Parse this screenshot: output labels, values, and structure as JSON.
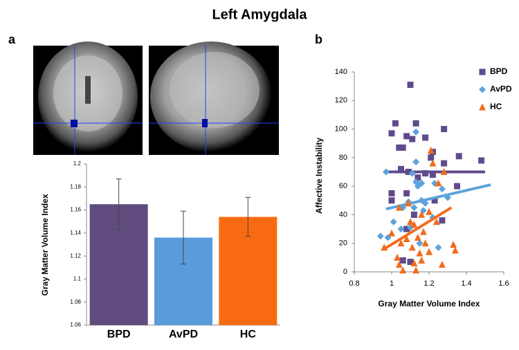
{
  "title": "Left Amygdala",
  "chart_data": [
    {
      "type": "bar",
      "panel_label": "a",
      "ylabel": "Gray Matter Volume Index",
      "categories": [
        "BPD",
        "AvPD",
        "HC"
      ],
      "values": [
        1.165,
        1.136,
        1.154
      ],
      "errors": [
        0.022,
        0.023,
        0.017
      ],
      "colors": [
        "#5f4b7e",
        "#5a9bdc",
        "#f96b12"
      ],
      "ylim": [
        1.06,
        1.2
      ],
      "yticks": [
        1.06,
        1.08,
        1.1,
        1.12,
        1.14,
        1.16,
        1.18,
        1.2
      ],
      "grid": false
    },
    {
      "type": "scatter",
      "panel_label": "b",
      "xlabel": "Gray Matter Volume Index",
      "ylabel": "Affective Instability",
      "xlim": [
        0.8,
        1.6
      ],
      "ylim": [
        0,
        140
      ],
      "xticks": [
        0.8,
        1,
        1.2,
        1.4,
        1.6
      ],
      "yticks": [
        0,
        20,
        40,
        60,
        80,
        100,
        120,
        140
      ],
      "legend": "upper right",
      "grid": false,
      "series": [
        {
          "name": "BPD",
          "color": "#5f4b8b",
          "marker": "square",
          "x": [
            1.1,
            1.02,
            1.13,
            1.0,
            1.08,
            1.11,
            1.18,
            1.28,
            1.04,
            1.06,
            1.22,
            1.36,
            1.48,
            1.28,
            1.14,
            1.21,
            1.05,
            1.09,
            1.0,
            1.0,
            1.08,
            1.18,
            1.22,
            1.12,
            1.23,
            1.08,
            1.06,
            1.1,
            1.35,
            1.27
          ],
          "y": [
            131,
            104,
            104,
            97,
            95,
            93,
            94,
            100,
            87,
            87,
            84,
            81,
            78,
            76,
            66,
            80,
            72,
            70,
            55,
            50,
            55,
            69,
            68,
            40,
            50,
            30,
            8,
            7,
            60,
            36
          ],
          "trend": {
            "x": [
              0.97,
              1.5
            ],
            "y": [
              70,
              70
            ]
          }
        },
        {
          "name": "AvPD",
          "color": "#5ba3dc",
          "marker": "diamond",
          "x": [
            1.13,
            0.97,
            1.11,
            1.13,
            1.13,
            1.14,
            1.16,
            1.09,
            1.12,
            1.17,
            1.22,
            1.27,
            1.3,
            1.23,
            1.01,
            0.94,
            0.98,
            1.05,
            1.1,
            1.15,
            1.25,
            1.18,
            1.16,
            1.06
          ],
          "y": [
            98,
            70,
            69,
            77,
            63,
            60,
            50,
            49,
            45,
            43,
            38,
            58,
            52,
            62,
            35,
            25,
            24,
            30,
            31,
            20,
            17,
            48,
            62,
            45
          ],
          "trend": {
            "x": [
              0.97,
              1.53
            ],
            "y": [
              44,
              61
            ]
          }
        },
        {
          "name": "HC",
          "color": "#f26b1d",
          "marker": "triangle",
          "x": [
            1.21,
            1.22,
            1.25,
            1.28,
            1.04,
            1.09,
            1.1,
            1.12,
            1.16,
            1.2,
            1.17,
            1.14,
            1.18,
            1.05,
            0.96,
            1.03,
            1.04,
            1.11,
            1.12,
            1.16,
            1.13,
            1.2,
            1.27,
            1.33,
            1.34,
            1.24,
            1.06,
            1.15,
            1.0,
            1.08
          ],
          "y": [
            85,
            76,
            62,
            70,
            45,
            48,
            35,
            33,
            40,
            42,
            28,
            24,
            20,
            20,
            17,
            10,
            5,
            17,
            6,
            8,
            1,
            14,
            5,
            19,
            15,
            35,
            1,
            13,
            27,
            23
          ],
          "trend": {
            "x": [
              0.96,
              1.32
            ],
            "y": [
              16,
              45
            ]
          }
        }
      ]
    }
  ]
}
